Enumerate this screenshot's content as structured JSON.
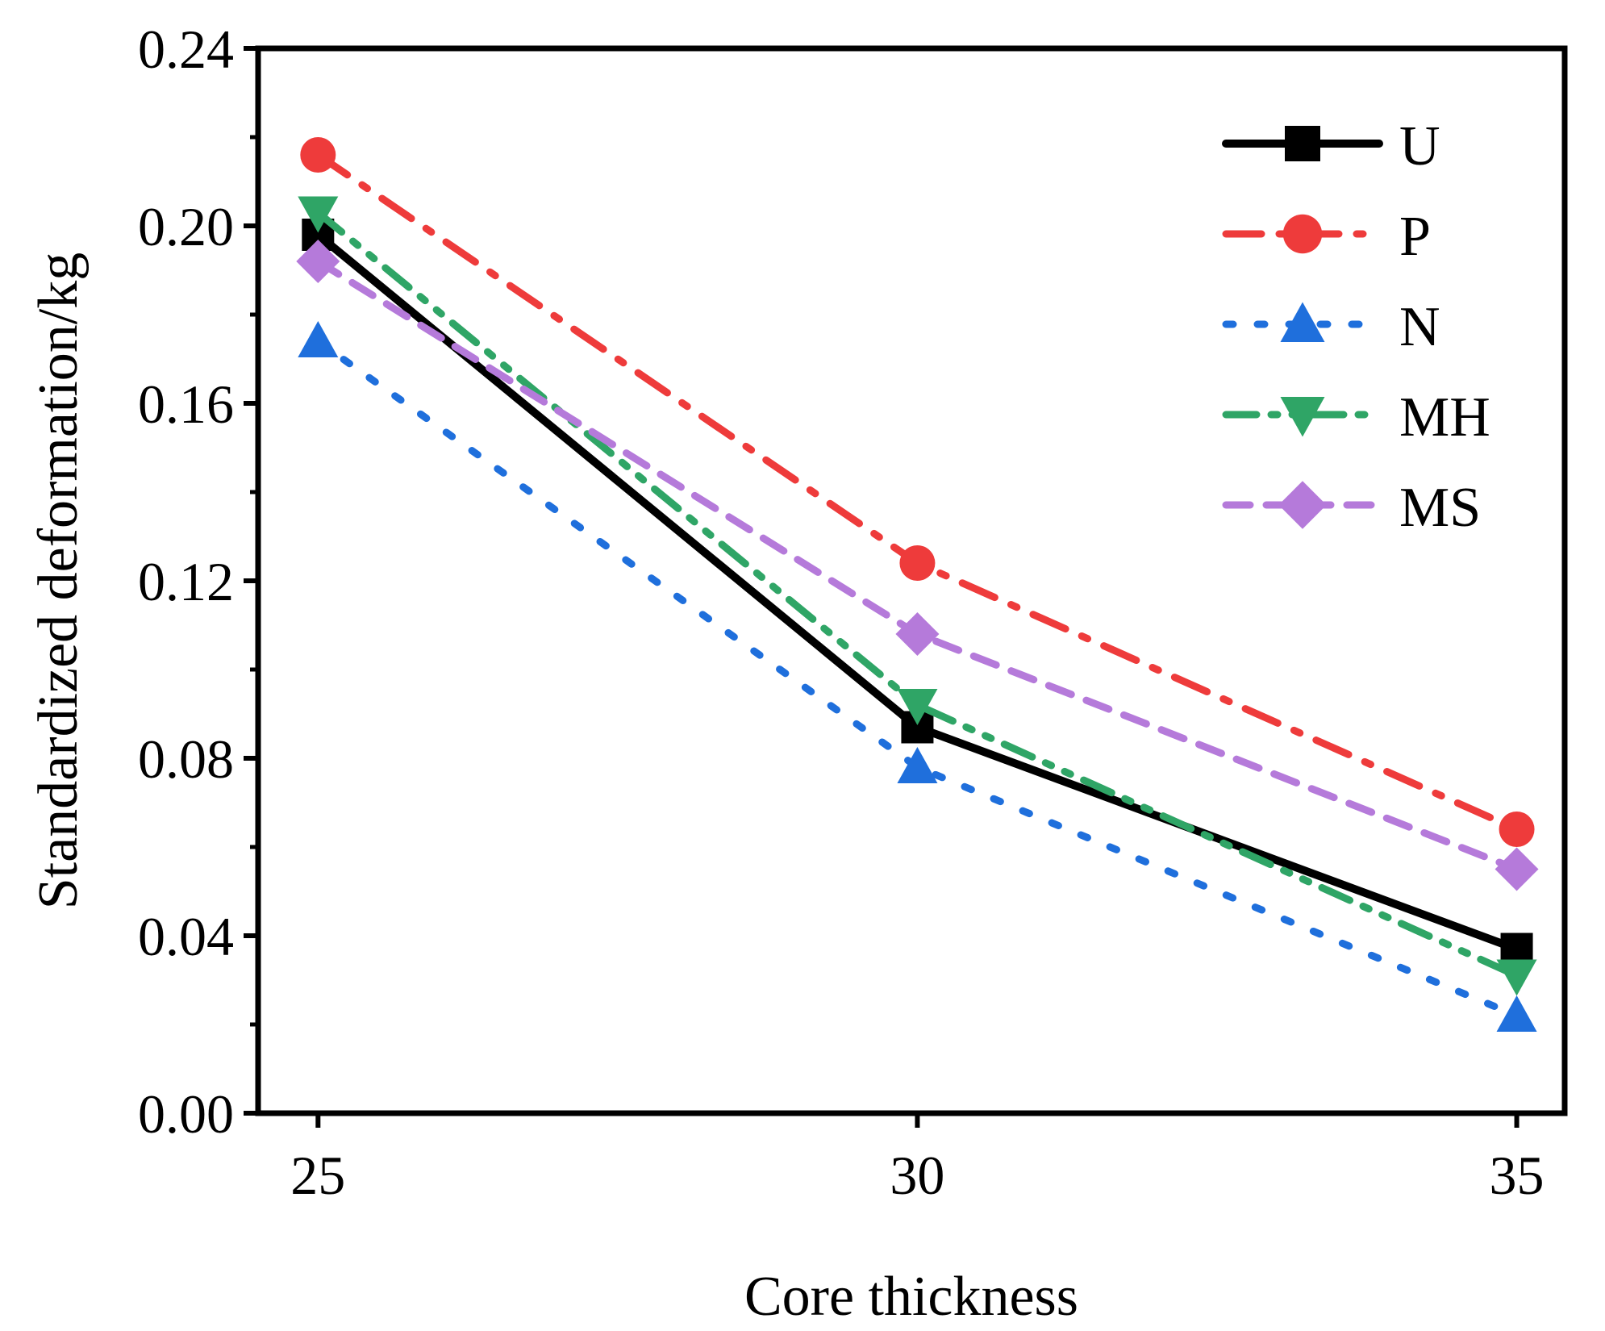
{
  "chart_data": {
    "type": "line",
    "title": "",
    "xlabel": "Core thickness",
    "ylabel": "Standardized deformation/kg",
    "x": [
      25,
      30,
      35
    ],
    "xlim": [
      24.5,
      35.4
    ],
    "ylim": [
      0,
      0.24
    ],
    "x_ticks": [
      "25",
      "30",
      "35"
    ],
    "y_ticks": [
      "0.00",
      "0.04",
      "0.08",
      "0.12",
      "0.16",
      "0.20",
      "0.24"
    ],
    "legend_position": "top-right",
    "grid": false,
    "series": [
      {
        "name": "U",
        "values": [
          0.198,
          0.087,
          0.037
        ],
        "color": "#000000",
        "marker": "square",
        "dash": "solid"
      },
      {
        "name": "P",
        "values": [
          0.216,
          0.124,
          0.064
        ],
        "color": "#ee3b3b",
        "marker": "circle",
        "dash": "dashdot"
      },
      {
        "name": "N",
        "values": [
          0.174,
          0.078,
          0.022
        ],
        "color": "#1f6fdc",
        "marker": "triangle-up",
        "dash": "dot"
      },
      {
        "name": "MH",
        "values": [
          0.203,
          0.092,
          0.031
        ],
        "color": "#2fa566",
        "marker": "triangle-down",
        "dash": "dashdotdot"
      },
      {
        "name": "MS",
        "values": [
          0.192,
          0.108,
          0.055
        ],
        "color": "#b57ada",
        "marker": "diamond",
        "dash": "shortdash"
      }
    ]
  }
}
